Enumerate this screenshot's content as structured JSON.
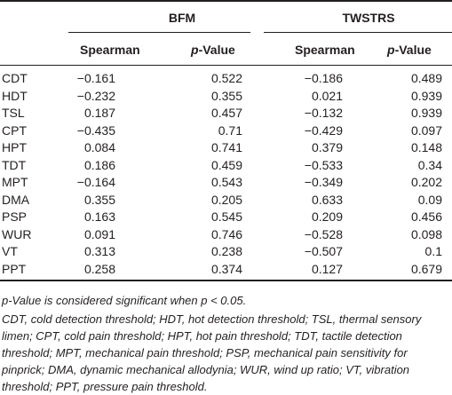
{
  "table": {
    "group_headers": [
      "BFM",
      "TWSTRS"
    ],
    "column_headers": {
      "bfm_spearman": "Spearman",
      "bfm_pvalue_italic": "p",
      "bfm_pvalue_rest": "-Value",
      "tw_spearman": "Spearman",
      "tw_pvalue_italic": "p",
      "tw_pvalue_rest": "-Value"
    },
    "rows": [
      [
        "CDT",
        "−0.161",
        "0.522",
        "−0.186",
        "0.489"
      ],
      [
        "HDT",
        "−0.232",
        "0.355",
        "0.021",
        "0.939"
      ],
      [
        "TSL",
        "0.187",
        "0.457",
        "−0.132",
        "0.939"
      ],
      [
        "CPT",
        "−0.435",
        "0.71",
        "−0.429",
        "0.097"
      ],
      [
        "HPT",
        "0.084",
        "0.741",
        "0.379",
        "0.148"
      ],
      [
        "TDT",
        "0.186",
        "0.459",
        "−0.533",
        "0.34"
      ],
      [
        "MPT",
        "−0.164",
        "0.543",
        "−0.349",
        "0.202"
      ],
      [
        "DMA",
        "0.355",
        "0.205",
        "0.633",
        "0.09"
      ],
      [
        "PSP",
        "0.163",
        "0.545",
        "0.209",
        "0.456"
      ],
      [
        "WUR",
        "0.091",
        "0.746",
        "−0.528",
        "0.098"
      ],
      [
        "VT",
        "0.313",
        "0.238",
        "−0.507",
        "0.1"
      ],
      [
        "PPT",
        "0.258",
        "0.374",
        "0.127",
        "0.679"
      ]
    ]
  },
  "footnotes": {
    "significance": "p-Value is considered significant when p < 0.05.",
    "abbrev_lines": [
      "CDT, cold detection threshold; HDT, hot detection threshold; TSL, thermal sensory",
      "limen; CPT, cold pain threshold; HPT, hot pain threshold; TDT, tactile detection",
      "threshold; MPT, mechanical pain threshold; PSP, mechanical pain sensitivity for",
      "pinprick; DMA, dynamic mechanical allodynia; WUR, wind up ratio; VT, vibration",
      "threshold; PPT, pressure pain threshold."
    ]
  }
}
